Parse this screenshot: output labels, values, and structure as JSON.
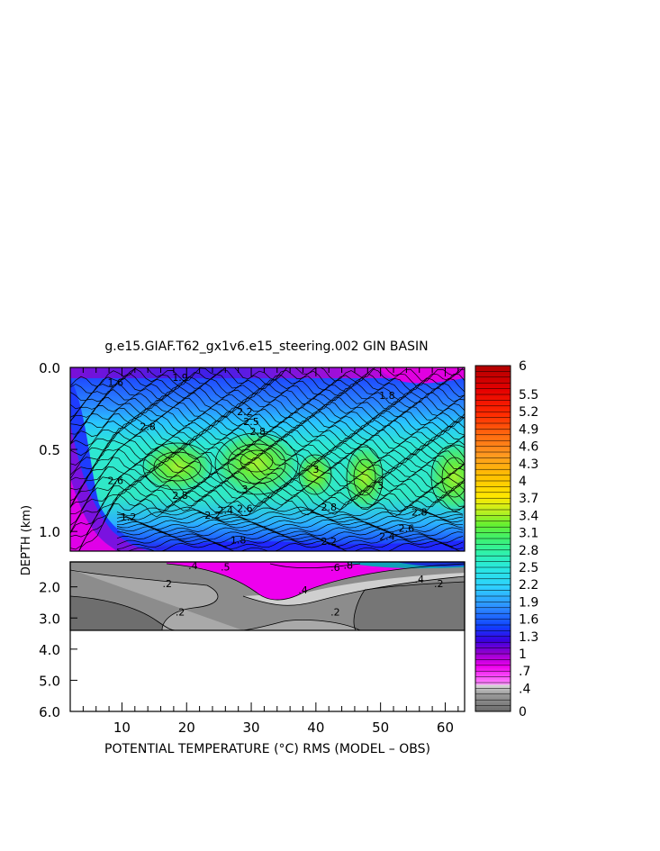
{
  "chart_data": {
    "type": "heatmap",
    "title": "g.e15.GIAF.T62_gx1v6.e15_steering.002 GIN BASIN",
    "xlabel": "POTENTIAL TEMPERATURE (°C) RMS (MODEL – OBS)",
    "ylabel": "DEPTH (km)",
    "x_ticks": [
      "10",
      "20",
      "30",
      "40",
      "50",
      "60"
    ],
    "x_tick_values": [
      10,
      20,
      30,
      40,
      50,
      60
    ],
    "xlim": [
      2,
      63
    ],
    "upper_panel": {
      "y_ticks": [
        "0.0",
        "0.5",
        "1.0"
      ],
      "y_tick_values": [
        0.0,
        0.5,
        1.0
      ],
      "ylim": [
        0.0,
        1.12
      ]
    },
    "lower_panel": {
      "y_ticks": [
        "2.0",
        "3.0",
        "4.0",
        "5.0",
        "6.0"
      ],
      "y_tick_values": [
        2.0,
        3.0,
        4.0,
        5.0,
        6.0
      ],
      "ylim": [
        1.2,
        6.0
      ],
      "data_bottom_depth": 3.35
    },
    "colorbar_levels": [
      "6",
      "5.5",
      "5.2",
      "4.9",
      "4.6",
      "4.3",
      "4",
      "3.7",
      "3.4",
      "3.1",
      "2.8",
      "2.5",
      "2.2",
      "1.9",
      "1.6",
      "1.3",
      "1",
      ".7",
      ".4",
      "0"
    ],
    "colorbar_level_values": [
      6,
      5.5,
      5.2,
      4.9,
      4.6,
      4.3,
      4,
      3.7,
      3.4,
      3.1,
      2.8,
      2.5,
      2.2,
      1.9,
      1.6,
      1.3,
      1,
      0.7,
      0.4,
      0
    ],
    "colorbar_range": [
      0,
      6
    ],
    "contour_labels_upper": [
      {
        "text": "1.6",
        "x": 9,
        "depth": 0.09
      },
      {
        "text": "1.9",
        "x": 19,
        "depth": 0.06
      },
      {
        "text": "2.2",
        "x": 29,
        "depth": 0.27
      },
      {
        "text": "2.5",
        "x": 30,
        "depth": 0.33
      },
      {
        "text": "2.8",
        "x": 31,
        "depth": 0.39
      },
      {
        "text": "2.8",
        "x": 14,
        "depth": 0.36
      },
      {
        "text": "2.8",
        "x": 19,
        "depth": 0.78
      },
      {
        "text": "2.2",
        "x": 24,
        "depth": 0.9
      },
      {
        "text": "2.4",
        "x": 26,
        "depth": 0.87
      },
      {
        "text": "2.6",
        "x": 29,
        "depth": 0.86
      },
      {
        "text": "3",
        "x": 29,
        "depth": 0.74
      },
      {
        "text": "3",
        "x": 40,
        "depth": 0.62
      },
      {
        "text": "3",
        "x": 50,
        "depth": 0.72
      },
      {
        "text": "2.8",
        "x": 42,
        "depth": 0.85
      },
      {
        "text": "2.8",
        "x": 56,
        "depth": 0.88
      },
      {
        "text": "2.6",
        "x": 9,
        "depth": 0.69
      },
      {
        "text": "2.6",
        "x": 54,
        "depth": 0.98
      },
      {
        "text": "2.4",
        "x": 51,
        "depth": 1.03
      },
      {
        "text": "2.2",
        "x": 42,
        "depth": 1.06
      },
      {
        "text": "1.8",
        "x": 28,
        "depth": 1.05
      },
      {
        "text": "1.6",
        "x": 30,
        "depth": 1.1
      },
      {
        "text": "1.4",
        "x": 21,
        "depth": 1.11
      },
      {
        "text": "1.2",
        "x": 11,
        "depth": 0.91
      },
      {
        "text": "1.8",
        "x": 51,
        "depth": 0.17
      }
    ],
    "contour_labels_lower": [
      {
        "text": ".4",
        "x": 21,
        "depth": 1.32
      },
      {
        "text": ".5",
        "x": 26,
        "depth": 1.36
      },
      {
        "text": ".2",
        "x": 17,
        "depth": 1.9
      },
      {
        "text": ".2",
        "x": 19,
        "depth": 2.8
      },
      {
        "text": ".4",
        "x": 38,
        "depth": 2.1
      },
      {
        "text": ".2",
        "x": 43,
        "depth": 2.8
      },
      {
        "text": ".4",
        "x": 56,
        "depth": 1.75
      },
      {
        "text": ".2",
        "x": 59,
        "depth": 1.9
      },
      {
        "text": ".8",
        "x": 45,
        "depth": 1.3
      },
      {
        "text": ".6",
        "x": 43,
        "depth": 1.38
      }
    ]
  }
}
